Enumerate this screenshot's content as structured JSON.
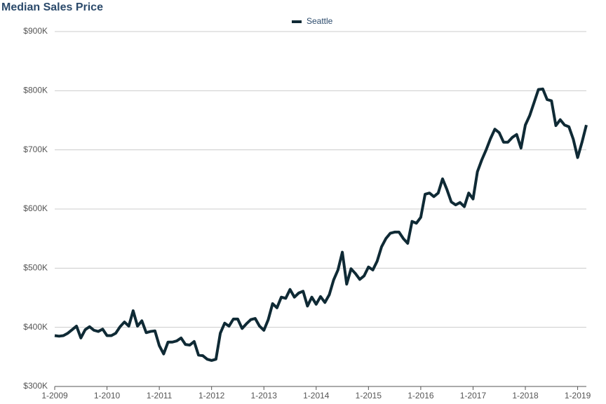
{
  "chart_data": {
    "type": "line",
    "title": "Median Sales Price",
    "categories": [
      "1-2009",
      null,
      null,
      null,
      null,
      null,
      null,
      null,
      null,
      null,
      null,
      null,
      "1-2010",
      null,
      null,
      null,
      null,
      null,
      null,
      null,
      null,
      null,
      null,
      null,
      "1-2011",
      null,
      null,
      null,
      null,
      null,
      null,
      null,
      null,
      null,
      null,
      null,
      "1-2012",
      null,
      null,
      null,
      null,
      null,
      null,
      null,
      null,
      null,
      null,
      null,
      "1-2013",
      null,
      null,
      null,
      null,
      null,
      null,
      null,
      null,
      null,
      null,
      null,
      "1-2014",
      null,
      null,
      null,
      null,
      null,
      null,
      null,
      null,
      null,
      null,
      null,
      "1-2015",
      null,
      null,
      null,
      null,
      null,
      null,
      null,
      null,
      null,
      null,
      null,
      "1-2016",
      null,
      null,
      null,
      null,
      null,
      null,
      null,
      null,
      null,
      null,
      null,
      "1-2017",
      null,
      null,
      null,
      null,
      null,
      null,
      null,
      null,
      null,
      null,
      null,
      "1-2018",
      null,
      null,
      null,
      null,
      null,
      null,
      null,
      null,
      null,
      null,
      null,
      "1-2019",
      null,
      null
    ],
    "series": [
      {
        "name": "Seattle",
        "color": "#0f2a35",
        "values": [
          386000,
          385000,
          386000,
          390000,
          396000,
          402000,
          382000,
          396000,
          401000,
          395000,
          393000,
          397000,
          386000,
          386000,
          390000,
          401000,
          409000,
          402000,
          428000,
          402000,
          411000,
          391000,
          393000,
          394000,
          369000,
          355000,
          375000,
          375000,
          377000,
          382000,
          371000,
          370000,
          376000,
          353000,
          352000,
          346000,
          344000,
          346000,
          390000,
          407000,
          402000,
          414000,
          414000,
          398000,
          406000,
          413000,
          415000,
          402000,
          395000,
          413000,
          440000,
          433000,
          451000,
          449000,
          464000,
          451000,
          458000,
          461000,
          436000,
          451000,
          439000,
          452000,
          442000,
          455000,
          480000,
          497000,
          527000,
          473000,
          499000,
          491000,
          481000,
          487000,
          502000,
          497000,
          512000,
          536000,
          550000,
          559000,
          561000,
          561000,
          550000,
          542000,
          579000,
          576000,
          586000,
          625000,
          627000,
          621000,
          627000,
          651000,
          633000,
          612000,
          607000,
          611000,
          604000,
          627000,
          617000,
          663000,
          683000,
          700000,
          719000,
          735000,
          729000,
          713000,
          713000,
          721000,
          726000,
          703000,
          742000,
          758000,
          780000,
          802000,
          803000,
          785000,
          783000,
          741000,
          751000,
          742000,
          739000,
          718000,
          687000,
          713000,
          742000
        ]
      }
    ],
    "ylim": [
      300000,
      900000
    ],
    "yticks": [
      {
        "value": 300000,
        "label": "$300K"
      },
      {
        "value": 400000,
        "label": "$400K"
      },
      {
        "value": 500000,
        "label": "$500K"
      },
      {
        "value": 600000,
        "label": "$600K"
      },
      {
        "value": 700000,
        "label": "$700K"
      },
      {
        "value": 800000,
        "label": "$800K"
      },
      {
        "value": 900000,
        "label": "$900K"
      }
    ],
    "grid": true
  }
}
